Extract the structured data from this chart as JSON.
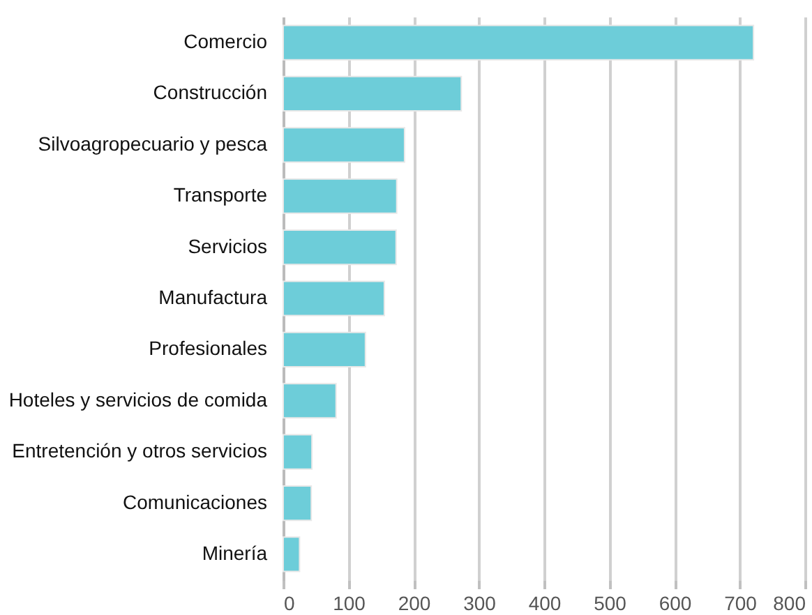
{
  "chart_data": {
    "type": "bar",
    "orientation": "horizontal",
    "categories": [
      "Comercio",
      "Construcción",
      "Silvoagropecuario y pesca",
      "Transporte",
      "Servicios",
      "Manufactura",
      "Profesionales",
      "Hoteles y servicios de comida",
      "Entretención y otros servicios",
      "Comunicaciones",
      "Minería"
    ],
    "values": [
      721,
      273,
      186,
      174,
      173,
      155,
      126,
      81,
      44,
      43,
      25
    ],
    "color": "#6dcdd9",
    "xlim": [
      0,
      800
    ],
    "xticks": [
      0,
      100,
      200,
      300,
      400,
      500,
      600,
      700,
      800
    ],
    "grid": "x"
  }
}
